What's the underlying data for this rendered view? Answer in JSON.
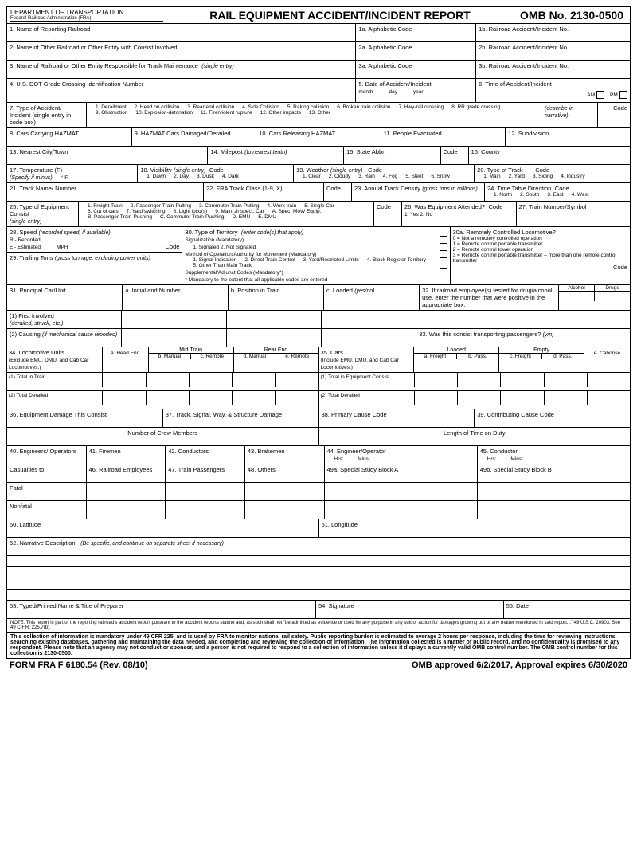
{
  "header": {
    "dept": "DEPARTMENT OF TRANSPORTATION",
    "sub": "Federal Railroad Administration (FRA)",
    "title": "RAIL EQUIPMENT ACCIDENT/INCIDENT REPORT",
    "omb": "OMB No. 2130-0500"
  },
  "f1": {
    "l": "1. Name of Reporting Railroad",
    "a": "1a. Alphabetic Code",
    "b": "1b. Railroad Accident/Incident No."
  },
  "f2": {
    "l": "2. Name of Other Railroad or Other Entity with Consist Involved",
    "a": "2a. Alphabetic Code",
    "b": "2b. Railroad Accident/Incident No."
  },
  "f3": {
    "l": "3. Name of Railroad or Other Entity Responsible for Track Maintenance",
    "it": "(single entry)",
    "a": "3a. Alphabetic Code",
    "b": "3b. Railroad Accident/Incident No."
  },
  "f4": "4. U.S. DOT Grade Crossing Identification Number",
  "f5": {
    "l": "5. Date of Accident/Incident",
    "m": "month",
    "d": "day",
    "y": "year"
  },
  "f6": {
    "l": "6. Time of Accident/Incident",
    "am": "AM",
    "pm": "PM"
  },
  "f7": {
    "l": "7. Type of Accident/ Incident (single entry in code box)",
    "opts": [
      "1. Derailment",
      "2. Head on collision",
      "3. Rear end collision",
      "4. Side Collision",
      "5. Raking collision",
      "6. Broken train collision",
      "7. Hwy-rail crossing",
      "8. RR grade crossing",
      "9. Obstruction",
      "10. Explosion-detonation",
      "11. Fire/violent rupture",
      "12. Other impacts",
      "13. Other"
    ],
    "desc": "(describe in narrative)",
    "code": "Code"
  },
  "f8": "8. Cars Carrying HAZMAT",
  "f9": "9. HAZMAT Cars Damaged/Derailed",
  "f10": "10. Cars Releasing HAZMAT",
  "f11": "11. People Evacuated",
  "f12": "12. Subdivision",
  "f13": "13. Nearest City/Town",
  "f14": {
    "l": "14. Milepost",
    "it": "(to nearest tenth)"
  },
  "f15": "15. State Abbr.",
  "f15c": "Code",
  "f16": "16. County",
  "f17": {
    "l": "17. Temperature (F)",
    "it": "(Specify if minus)",
    "u": "° F"
  },
  "f18": {
    "l": "18. Visibility",
    "it": "(single entry)",
    "code": "Code",
    "opts": [
      "1. Dawn",
      "2. Day",
      "3. Dusk",
      "4. Dark"
    ]
  },
  "f19": {
    "l": "19. Weather",
    "it": "(single entry)",
    "code": "Code",
    "opts": [
      "1. Clear",
      "2. Cloudy",
      "3. Rain",
      "4. Fog",
      "5. Sleet",
      "6. Snow"
    ]
  },
  "f20": {
    "l": "20. Type of Track",
    "code": "Code",
    "opts": [
      "1. Main",
      "2. Yard",
      "3. Siding",
      "4. Industry"
    ]
  },
  "f21": "21. Track Name/ Number",
  "f22": {
    "l": "22. FRA Track Class (1-9, X)",
    "code": "Code"
  },
  "f23": {
    "l": "23. Annual Track Density",
    "it": "(gross tons in millions)"
  },
  "f24": {
    "l": "24. Time Table Direction",
    "code": "Code",
    "opts": [
      "1. North",
      "2. South",
      "3. East",
      "4. West"
    ]
  },
  "f25": {
    "l": "25. Type of Equipment Consist",
    "it": "(single entry)",
    "code": "Code",
    "opts": [
      "1. Freight Train",
      "2. Passenger Train-Pulling",
      "3. Commuter Train-Pulling",
      "4. Work train",
      "5. Single Car",
      "6. Cut of cars",
      "7. Yard/switching",
      "8. Light loco(s)",
      "9. Maint./inspect. Car",
      "A. Spec. MoW Equip.",
      "B. Passenger Train-Pushing",
      "C. Commuter Train-Pushing",
      "D. EMU",
      "E. DMU"
    ]
  },
  "f26": {
    "l": "26. Was Equipment Attended?",
    "code": "Code",
    "opts": "1. Yes   2. No"
  },
  "f27": "27. Train Number/Symbol",
  "f28": {
    "l": "28. Speed",
    "it": "(recorded speed, if available)",
    "r": "R - Recorded",
    "e": "E - Estimated",
    "u": "MPH",
    "code": "Code"
  },
  "f29": {
    "l": "29. Trailing Tons",
    "it": "(gross tonnage, excluding power units)"
  },
  "f30": {
    "l": "30. Type of Territory",
    "it": "(enter code(s) that apply)",
    "sig": "Signalization (Mandatory)",
    "sigopts": "1. Signaled   2. Not Signaled",
    "method": "Method of Operation/Authority for Movement (Mandatory)",
    "mopts": [
      "1. Signal Indication",
      "2. Direct Train Control",
      "3. Yard/Restricted Limits",
      "4. Block Register Territory",
      "5. Other Than Main Track"
    ],
    "supp": "Supplemental/Adjunct Codes (Mandatory*)",
    "note": "* Mandatory to the extent that all applicable codes are entered"
  },
  "f30a": {
    "l": "30a. Remotely Controlled Locomotive?",
    "opts": [
      "0 = Not a remotely controlled operation",
      "1 = Remote control portable transmitter",
      "2 = Remote control tower operation",
      "3 = Remote control portable transmitter – more than one remote control transmitter"
    ],
    "code": "Code"
  },
  "f31": {
    "l": "31. Principal Car/Unit",
    "a": "a. Initial and Number",
    "b": "b. Position in Train",
    "c": "c. Loaded",
    "cit": "(yes/no)",
    "r1": "(1) First Involved",
    "r1it": "(derailed, struck, etc.)",
    "r2": "(2) Causing",
    "r2it": "(if mechanical cause reported)"
  },
  "f32": {
    "l": "32. If railroad employee(s) tested for drug/alcohol use, enter the number that were positive in the appropriate box.",
    "a": "Alcohol",
    "d": "Drugs"
  },
  "f33": {
    "l": "33. Was this consist transporting passengers?",
    "it": "(y/n)"
  },
  "f34": {
    "l": "34. Locomotive Units",
    "sub": "(Exclude EMU, DMU, and Cab Car Locomotives.)",
    "a": "a. Head End",
    "mid": "Mid Train",
    "b": "b. Manual",
    "c": "c. Remote",
    "rear": "Rear End",
    "d": "d. Manual",
    "e": "e. Remote",
    "r1": "(1) Total in Train",
    "r2": "(2) Total Derailed"
  },
  "f35": {
    "l": "35. Cars",
    "sub": "(Include EMU, DMU, and Cab Car Locomotives.)",
    "loaded": "Loaded",
    "empty": "Empty",
    "a": "a. Freight",
    "b": "b. Pass.",
    "c": "c. Freight",
    "d": "d. Pass.",
    "e": "e. Caboose",
    "r1": "(1) Total in Equipment Consist",
    "r2": "(2) Total Derailed"
  },
  "f36": "36. Equipment Damage This Consist",
  "f37": "37. Track, Signal, Way, & Structure Damage",
  "f38": "38. Primary Cause Code",
  "f39": "39. Contributing Cause Code",
  "crew": "Number of Crew Members",
  "duty": "Length of Time on Duty",
  "f40": "40. Engineers/ Operators",
  "f41": "41. Firemen",
  "f42": "42. Conductors",
  "f43": "43. Brakemen",
  "f44": {
    "l": "44. Engineer/Operator",
    "h": "Hrs:",
    "m": "Mins:"
  },
  "f45": {
    "l": "45. Conductor",
    "h": "Hrs:",
    "m": "Mins:"
  },
  "cas": "Casualties to:",
  "f46": "46. Railroad Employees",
  "f47": "47. Train Passengers",
  "f48": "48. Others",
  "f49a": "49a. Special Study Block A",
  "f49b": "49b. Special Study Block B",
  "fatal": "Fatal",
  "nonfatal": "Nonfatal",
  "f50": "50. Latitude",
  "f51": "51. Longitude",
  "f52": {
    "l": "52. Narrative Description",
    "it": "(Be specific, and continue on separate sheet if necessary)"
  },
  "f53": "53. Typed/Printed Name & Title of Preparer",
  "f54": "54. Signature",
  "f55": "55. Date",
  "note": "NOTE: This report is part of the reporting railroad's accident report pursuant to the accident reports statute and, as such shall not \"be admitted as evidence or used for any purpose in any suit or action for damages growing out of any matter mentioned in said report...\" 49 U.S.C. 20903. See 49 C.F.R. 225.7(b).",
  "disc": "This collection of information is mandatory under 49 CFR 225, and is used by FRA to monitor national rail safety. Public reporting burden is estimated to average 2 hours per response, including the time for reviewing instructions, searching existing databases, gathering and maintaining the data needed, and completing and reviewing the collection of information. The information collected is a matter of public record, and no confidentiality is promised to any respondent. Please note that an agency may not conduct or sponsor, and a person is not required to respond to a collection of information unless it displays a currently valid OMB control number. The OMB control number for this collection is 2130-0500.",
  "footer": {
    "form": "FORM FRA F 6180.54  (Rev. 08/10)",
    "appr": "OMB approved 6/2/2017, Approval expires 6/30/2020"
  }
}
